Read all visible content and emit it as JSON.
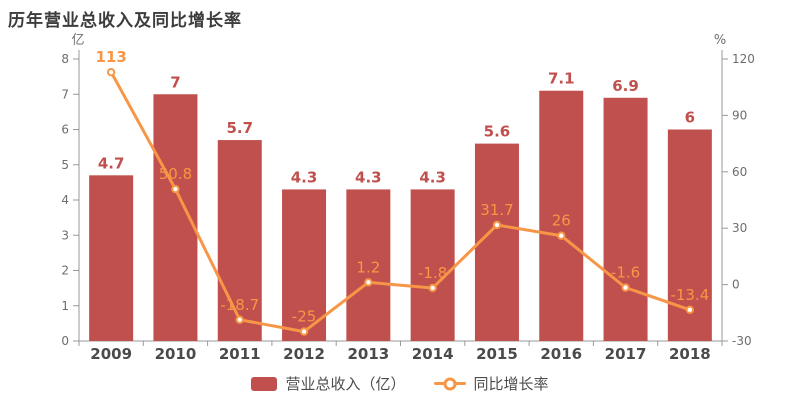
{
  "title": "历年营业总收入及同比增长率",
  "colors": {
    "bar": "#c0504d",
    "line": "#f79646",
    "bar_label": "#c0504d",
    "line_label": "#f79646",
    "title": "#3c3c3c",
    "axis_line": "#999999",
    "tick_label": "#6e6e6e",
    "category_label": "#4a4a4a",
    "legend_text": "#4d4d4d",
    "marker_fill": "#ffffff"
  },
  "chart_data": {
    "type": "bar+line",
    "title": "历年营业总收入及同比增长率",
    "categories": [
      "2009",
      "2010",
      "2011",
      "2012",
      "2013",
      "2014",
      "2015",
      "2016",
      "2017",
      "2018"
    ],
    "series": [
      {
        "name": "营业总收入（亿）",
        "type": "bar",
        "axis": "left",
        "values": [
          4.7,
          7,
          5.7,
          4.3,
          4.3,
          4.3,
          5.6,
          7.1,
          6.9,
          6
        ]
      },
      {
        "name": "同比增长率",
        "type": "line",
        "axis": "right",
        "values": [
          113,
          50.8,
          -18.7,
          -25,
          1.2,
          -1.8,
          31.7,
          26,
          -1.6,
          -13.4
        ]
      }
    ],
    "left_axis": {
      "unit": "亿",
      "min": 0,
      "max": 8,
      "ticks": [
        0,
        1,
        2,
        3,
        4,
        5,
        6,
        7,
        8
      ]
    },
    "right_axis": {
      "unit": "%",
      "min": -30,
      "max": 120,
      "ticks": [
        -30,
        0,
        30,
        60,
        90,
        120
      ]
    },
    "legend_position": "bottom",
    "grid": false
  }
}
